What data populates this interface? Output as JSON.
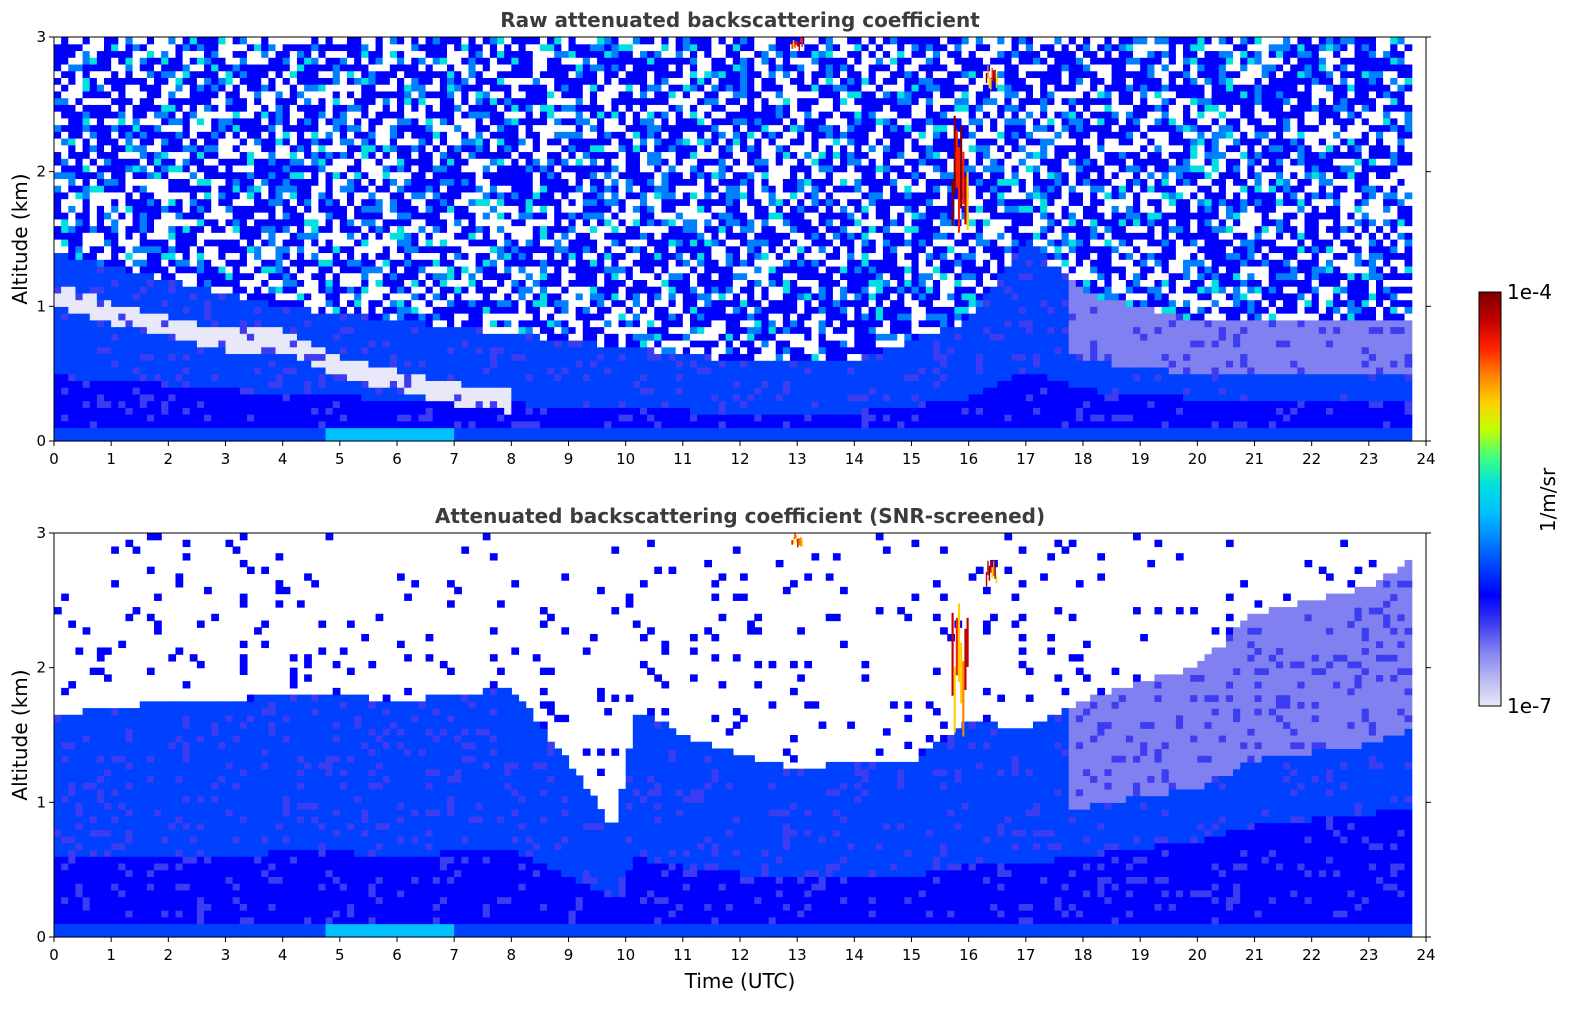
{
  "figure": {
    "panels": [
      {
        "id": "raw",
        "title": "Raw attenuated backscattering coefficient",
        "ylabel": "Altitude (km)",
        "xlabel": "",
        "screened": false
      },
      {
        "id": "screened",
        "title": "Attenuated backscattering coefficient (SNR-screened)",
        "ylabel": "Altitude (km)",
        "xlabel": "Time (UTC)",
        "screened": true
      }
    ],
    "colorbar": {
      "label": "1/m/sr",
      "max_label": "1e-4",
      "min_label": "1e-7",
      "colormap": [
        "#e8e8f8",
        "#b8b8f0",
        "#8080f0",
        "#3c3cf0",
        "#0000ff",
        "#0040ff",
        "#0080ff",
        "#00c0ff",
        "#00e0e0",
        "#40ff80",
        "#c0ff00",
        "#ffd000",
        "#ff8000",
        "#ff2000",
        "#c00000",
        "#800000"
      ]
    }
  },
  "chart_data": [
    {
      "type": "heatmap",
      "title": "Raw attenuated backscattering coefficient",
      "xlabel": "",
      "ylabel": "Altitude (km)",
      "xlim": [
        0,
        24
      ],
      "ylim": [
        0,
        3
      ],
      "x_ticks": [
        "0",
        "1",
        "2",
        "3",
        "4",
        "5",
        "6",
        "7",
        "8",
        "9",
        "10",
        "11",
        "12",
        "13",
        "14",
        "15",
        "16",
        "17",
        "18",
        "19",
        "20",
        "21",
        "22",
        "23",
        "24"
      ],
      "y_ticks": [
        "0",
        "1",
        "2",
        "3"
      ],
      "data_extent_x": [
        0,
        23.75
      ],
      "boundary_layer_top_km": {
        "time_utc": [
          0,
          2,
          4,
          6,
          8,
          10,
          12,
          14,
          16,
          17,
          18,
          20,
          22,
          23.75
        ],
        "altitude": [
          1.4,
          1.2,
          1.0,
          0.9,
          0.8,
          0.7,
          0.6,
          0.6,
          0.9,
          1.5,
          1.1,
          0.9,
          0.9,
          0.9
        ]
      },
      "aerosol_layer_km": {
        "time_utc": [
          0,
          1,
          2,
          3,
          4,
          5,
          6,
          7,
          8
        ],
        "altitude": [
          1.1,
          0.95,
          0.85,
          0.75,
          0.75,
          0.55,
          0.45,
          0.35,
          0.3
        ]
      },
      "clouds": [
        {
          "time_utc": [
            15.7,
            16.0
          ],
          "altitude_km": [
            1.5,
            2.5
          ]
        },
        {
          "time_utc": [
            16.3,
            16.5
          ],
          "altitude_km": [
            2.6,
            2.8
          ]
        },
        {
          "time_utc": [
            12.9,
            13.1
          ],
          "altitude_km": [
            2.9,
            3.0
          ]
        }
      ]
    },
    {
      "type": "heatmap",
      "title": "Attenuated backscattering coefficient (SNR-screened)",
      "xlabel": "Time (UTC)",
      "ylabel": "Altitude (km)",
      "xlim": [
        0,
        24
      ],
      "ylim": [
        0,
        3
      ],
      "x_ticks": [
        "0",
        "1",
        "2",
        "3",
        "4",
        "5",
        "6",
        "7",
        "8",
        "9",
        "10",
        "11",
        "12",
        "13",
        "14",
        "15",
        "16",
        "17",
        "18",
        "19",
        "20",
        "21",
        "22",
        "23",
        "24"
      ],
      "y_ticks": [
        "0",
        "1",
        "2",
        "3"
      ],
      "data_extent_x": [
        0,
        23.75
      ],
      "signal_top_km": {
        "time_utc": [
          0,
          1,
          2,
          3,
          4,
          5,
          6,
          7,
          8,
          9,
          9.8,
          10.2,
          11,
          12,
          13,
          14,
          15,
          16,
          17,
          18,
          19,
          20,
          21,
          22,
          23,
          23.75
        ],
        "altitude": [
          1.65,
          1.7,
          1.75,
          1.75,
          1.8,
          1.8,
          1.75,
          1.8,
          1.85,
          1.3,
          0.8,
          1.7,
          1.5,
          1.35,
          1.25,
          1.3,
          1.3,
          1.6,
          1.55,
          1.75,
          1.9,
          2.0,
          2.4,
          2.5,
          2.6,
          2.8
        ]
      },
      "clouds": [
        {
          "time_utc": [
            15.7,
            16.0
          ],
          "altitude_km": [
            1.5,
            2.5
          ]
        },
        {
          "time_utc": [
            16.3,
            16.5
          ],
          "altitude_km": [
            2.6,
            2.8
          ]
        },
        {
          "time_utc": [
            12.9,
            13.1
          ],
          "altitude_km": [
            2.9,
            3.0
          ]
        }
      ]
    }
  ]
}
